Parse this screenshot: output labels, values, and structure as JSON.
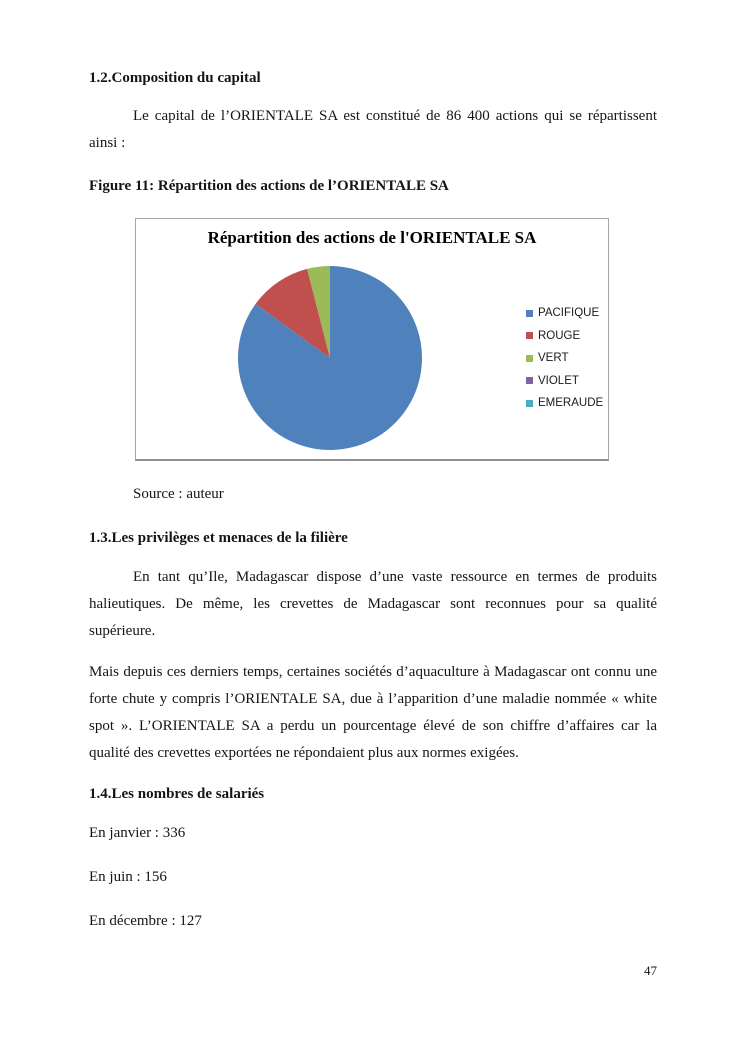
{
  "page": {
    "number": "47"
  },
  "sections": {
    "capital": {
      "heading": "1.2.Composition du capital",
      "paragraph": "Le capital de l’ORIENTALE SA est constitué de 86 400 actions qui se répartissent ainsi :"
    },
    "figure": {
      "caption": "Figure 11: Répartition des actions de l’ORIENTALE SA",
      "source": "Source : auteur"
    },
    "privileges": {
      "heading": "1.3.Les privilèges et menaces de la filière",
      "paragraph1": "En tant qu’Ile, Madagascar dispose d’une vaste ressource en termes de produits halieutiques. De même, les crevettes de Madagascar sont reconnues pour sa qualité supérieure.",
      "paragraph2": "Mais depuis ces derniers temps, certaines sociétés d’aquaculture à Madagascar ont connu une forte chute y compris l’ORIENTALE SA, due à l’apparition d’une maladie nommée « white spot ». L’ORIENTALE SA a perdu un pourcentage élevé de son chiffre d’affaires car la qualité des crevettes exportées ne répondaient plus aux normes exigées."
    },
    "salaries": {
      "heading": "1.4.Les nombres de salariés",
      "lines": [
        "En janvier : 336",
        "En juin : 156",
        "En décembre : 127"
      ]
    }
  },
  "chart_data": {
    "type": "pie",
    "title": "Répartition des actions de l'ORIENTALE SA",
    "categories": [
      "PACIFIQUE",
      "ROUGE",
      "VERT",
      "VIOLET",
      "EMERAUDE"
    ],
    "values": [
      85,
      11,
      4,
      0,
      0
    ],
    "values_unit": "% (estimated from slice angles)",
    "colors": [
      "#4F81BD",
      "#C0504D",
      "#9BBB59",
      "#8064A2",
      "#4BACC6"
    ],
    "legend_position": "right",
    "start_angle_deg": 0,
    "direction": "clockwise",
    "frame_border_color": "#a6a6a6"
  }
}
